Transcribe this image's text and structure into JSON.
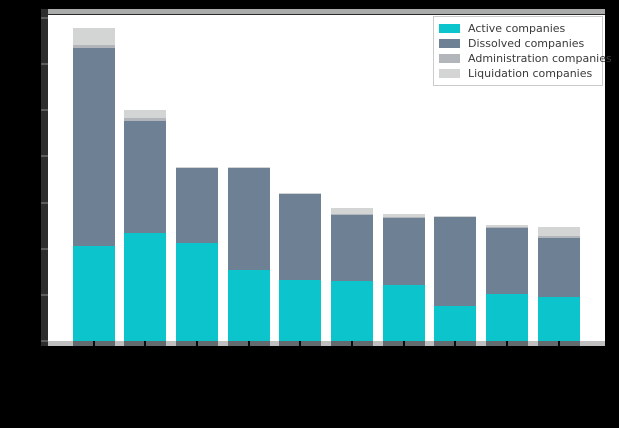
{
  "figure": {
    "background": "#000000",
    "plot_background": "#ffffff"
  },
  "chart_data": {
    "type": "bar",
    "stacked": true,
    "title": "",
    "xlabel": "",
    "ylabel": "",
    "grid": false,
    "legend_position": "upper right",
    "x": [
      1,
      2,
      3,
      4,
      5,
      6,
      7,
      8,
      9,
      10
    ],
    "x_tick_labels_visible": false,
    "y_tick_labels_visible": false,
    "note": "axis tick labels are not visible (rendered black on black background); values are in y-axis tick units",
    "yticks": [
      0,
      1,
      2,
      3,
      4,
      5,
      6,
      7
    ],
    "ylim": [
      0,
      7.1
    ],
    "series": [
      {
        "name": "Active companies",
        "color": "#0cc5cc",
        "values": [
          2.05,
          2.34,
          2.13,
          1.54,
          1.32,
          1.31,
          1.21,
          0.76,
          1.01,
          0.95
        ]
      },
      {
        "name": "Dissolved companies",
        "color": "#6e8093",
        "values": [
          4.31,
          2.42,
          1.62,
          2.2,
          1.86,
          1.43,
          1.45,
          1.92,
          1.45,
          1.29
        ]
      },
      {
        "name": "Administration companies",
        "color": "#b2b6ba",
        "values": [
          0.05,
          0.07,
          0.01,
          0.01,
          0.01,
          0.02,
          0.02,
          0.01,
          0.02,
          0.03
        ]
      },
      {
        "name": "Liquidation companies",
        "color": "#d3d5d5",
        "values": [
          0.37,
          0.18,
          0.02,
          0.03,
          0.01,
          0.13,
          0.07,
          0.01,
          0.03,
          0.21
        ]
      }
    ],
    "totals": [
      6.78,
      5.01,
      3.78,
      3.78,
      3.2,
      2.89,
      2.75,
      2.7,
      2.51,
      2.48
    ]
  },
  "colors": {
    "axis_strip": "#2d2d2d",
    "axis_tick": "#5c5c5c",
    "top_band": "#aaabab",
    "bottom_band": "#bfbfbf",
    "bottom_band_under_bar": "#636b6e",
    "legend_border": "#cbcbcb",
    "legend_text": "#3a3a3a"
  }
}
